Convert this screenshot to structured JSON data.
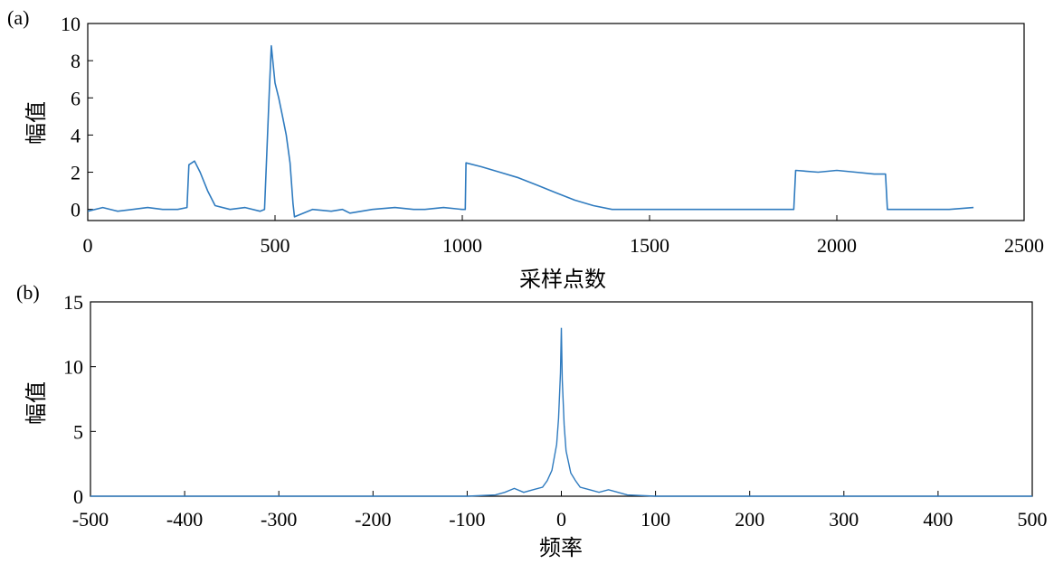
{
  "chart_data": [
    {
      "panel_label": "(a)",
      "type": "line",
      "xlabel": "采样点数",
      "ylabel": "幅值",
      "xlim": [
        0,
        2500
      ],
      "ylim": [
        -0.6,
        10
      ],
      "xticks": [
        0,
        500,
        1000,
        1500,
        2000,
        2500
      ],
      "yticks": [
        0,
        2,
        4,
        6,
        8,
        10
      ],
      "color": "#2f7bbf",
      "x": [
        0,
        40,
        80,
        120,
        160,
        200,
        240,
        265,
        270,
        285,
        300,
        320,
        340,
        380,
        420,
        460,
        472,
        478,
        485,
        490,
        500,
        510,
        520,
        530,
        540,
        548,
        552,
        600,
        650,
        680,
        700,
        760,
        820,
        870,
        880,
        900,
        950,
        1000,
        1008,
        1010,
        1050,
        1100,
        1150,
        1200,
        1250,
        1300,
        1350,
        1400,
        1450,
        1500,
        1550,
        1600,
        1650,
        1700,
        1750,
        1800,
        1850,
        1885,
        1890,
        1950,
        2000,
        2050,
        2100,
        2130,
        2135,
        2180,
        2250,
        2300,
        2365
      ],
      "y": [
        -0.1,
        0.1,
        -0.1,
        0.0,
        0.1,
        0.0,
        0.0,
        0.1,
        2.4,
        2.6,
        2.0,
        1.0,
        0.2,
        0.0,
        0.1,
        -0.1,
        0.0,
        3.0,
        6.5,
        8.8,
        6.8,
        6.0,
        5.0,
        4.0,
        2.5,
        0.3,
        -0.4,
        0.0,
        -0.1,
        0.0,
        -0.2,
        0.0,
        0.1,
        0.0,
        0.0,
        0.0,
        0.1,
        0.0,
        0.0,
        2.5,
        2.3,
        2.0,
        1.7,
        1.3,
        0.9,
        0.5,
        0.2,
        0.0,
        0.0,
        0.0,
        0.0,
        0.0,
        0.0,
        0.0,
        0.0,
        0.0,
        0.0,
        0.0,
        2.1,
        2.0,
        2.1,
        2.0,
        1.9,
        1.9,
        0.0,
        0.0,
        0.0,
        0.0,
        0.1
      ]
    },
    {
      "panel_label": "(b)",
      "type": "line",
      "xlabel": "频率",
      "ylabel": "幅值",
      "xlim": [
        -500,
        500
      ],
      "ylim": [
        0,
        15
      ],
      "xticks": [
        -500,
        -400,
        -300,
        -200,
        -100,
        0,
        100,
        200,
        300,
        400,
        500
      ],
      "yticks": [
        0,
        5,
        10,
        15
      ],
      "color": "#2f7bbf",
      "x": [
        -500,
        -100,
        -70,
        -60,
        -50,
        -40,
        -30,
        -20,
        -15,
        -10,
        -5,
        -3,
        -1,
        0,
        1,
        3,
        5,
        10,
        15,
        20,
        30,
        40,
        50,
        60,
        70,
        100,
        500
      ],
      "y": [
        0,
        0,
        0.1,
        0.3,
        0.6,
        0.3,
        0.5,
        0.7,
        1.2,
        2.0,
        4.0,
        6.0,
        9.5,
        13.0,
        9.0,
        5.5,
        3.5,
        1.8,
        1.2,
        0.7,
        0.5,
        0.3,
        0.5,
        0.3,
        0.1,
        0,
        0
      ]
    }
  ]
}
